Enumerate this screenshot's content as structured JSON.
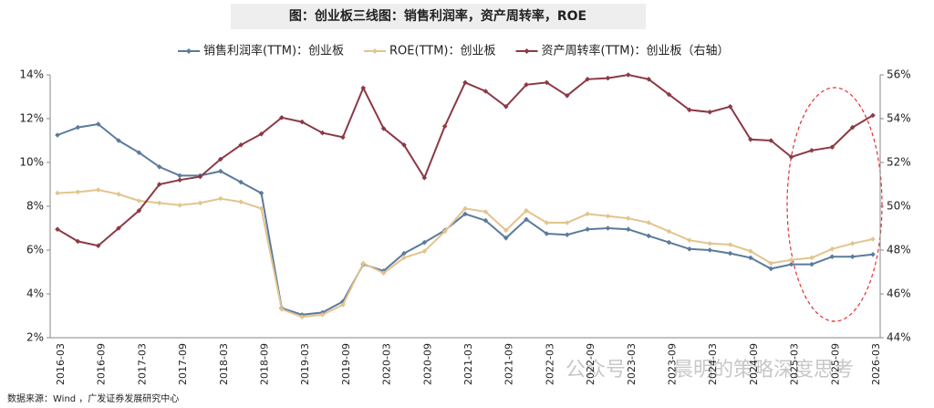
{
  "chart_data": {
    "type": "line",
    "title": "图：创业板三线图：销售利润率，资产周转率，ROE",
    "source": "数据来源：Wind ，广发证券发展研究中心",
    "watermark": [
      "公众号",
      "晨明的策略深度思考"
    ],
    "categories": [
      "2016-03",
      null,
      "2016-09",
      null,
      "2017-03",
      null,
      "2017-09",
      null,
      "2018-03",
      null,
      "2018-09",
      null,
      "2019-03",
      null,
      "2019-09",
      null,
      "2020-03",
      null,
      "2020-09",
      null,
      "2021-03",
      null,
      "2021-09",
      null,
      "2022-03",
      null,
      "2022-09",
      null,
      "2023-03",
      null,
      "2023-09",
      null,
      "2024-03",
      null,
      "2024-09",
      null,
      "2025-03",
      null,
      "2025-09",
      null,
      "2026-03"
    ],
    "series": [
      {
        "name": "销售利润率(TTM)：创业板",
        "color": "#5b7a9c",
        "values": [
          11.25,
          11.6,
          11.75,
          11.0,
          10.45,
          9.8,
          9.4,
          9.4,
          9.6,
          9.1,
          8.6,
          3.35,
          3.05,
          3.15,
          3.65,
          5.35,
          5.05,
          5.85,
          6.35,
          6.9,
          7.65,
          7.35,
          6.55,
          7.4,
          6.75,
          6.7,
          6.95,
          7.0,
          6.95,
          6.65,
          6.35,
          6.05,
          6.0,
          5.85,
          5.65,
          5.15,
          5.35,
          5.35,
          5.7,
          5.7,
          5.8
        ]
      },
      {
        "name": "ROE(TTM)：创业板",
        "color": "#e2c48e",
        "values": [
          8.6,
          8.65,
          8.75,
          8.55,
          8.25,
          8.15,
          8.05,
          8.15,
          8.35,
          8.2,
          7.9,
          3.3,
          2.95,
          3.05,
          3.5,
          5.4,
          4.95,
          5.65,
          5.95,
          6.85,
          7.9,
          7.75,
          6.9,
          7.8,
          7.25,
          7.25,
          7.65,
          7.55,
          7.45,
          7.25,
          6.85,
          6.45,
          6.3,
          6.25,
          5.95,
          5.4,
          5.55,
          5.65,
          6.05,
          6.3,
          6.5
        ]
      },
      {
        "name": "资产周转率(TTM)：创业板（右轴）",
        "color": "#8b3a45",
        "axis": "y2",
        "values": [
          48.95,
          48.4,
          48.2,
          49.0,
          49.8,
          51.0,
          51.2,
          51.35,
          52.15,
          52.8,
          53.3,
          54.05,
          53.85,
          53.35,
          53.15,
          55.4,
          53.55,
          52.8,
          51.3,
          53.65,
          55.65,
          55.25,
          54.55,
          55.55,
          55.65,
          55.05,
          55.8,
          55.85,
          56.0,
          55.8,
          55.1,
          54.4,
          54.3,
          54.55,
          53.05,
          53.0,
          52.25,
          52.55,
          52.7,
          53.6,
          54.15
        ]
      }
    ],
    "ylim": [
      2,
      14
    ],
    "yticks": [
      {
        "value": 2,
        "label": "2%"
      },
      {
        "value": 4,
        "label": "4%"
      },
      {
        "value": 6,
        "label": "6%"
      },
      {
        "value": 8,
        "label": "8%"
      },
      {
        "value": 10,
        "label": "10%"
      },
      {
        "value": 12,
        "label": "12%"
      },
      {
        "value": 14,
        "label": "14%"
      }
    ],
    "y2lim": [
      44,
      56
    ],
    "y2ticks": [
      {
        "value": 44,
        "label": "44%"
      },
      {
        "value": 46,
        "label": "46%"
      },
      {
        "value": 48,
        "label": "48%"
      },
      {
        "value": 50,
        "label": "50%"
      },
      {
        "value": 52,
        "label": "52%"
      },
      {
        "value": 54,
        "label": "54%"
      },
      {
        "value": 56,
        "label": "56%"
      }
    ],
    "legend": "top"
  }
}
